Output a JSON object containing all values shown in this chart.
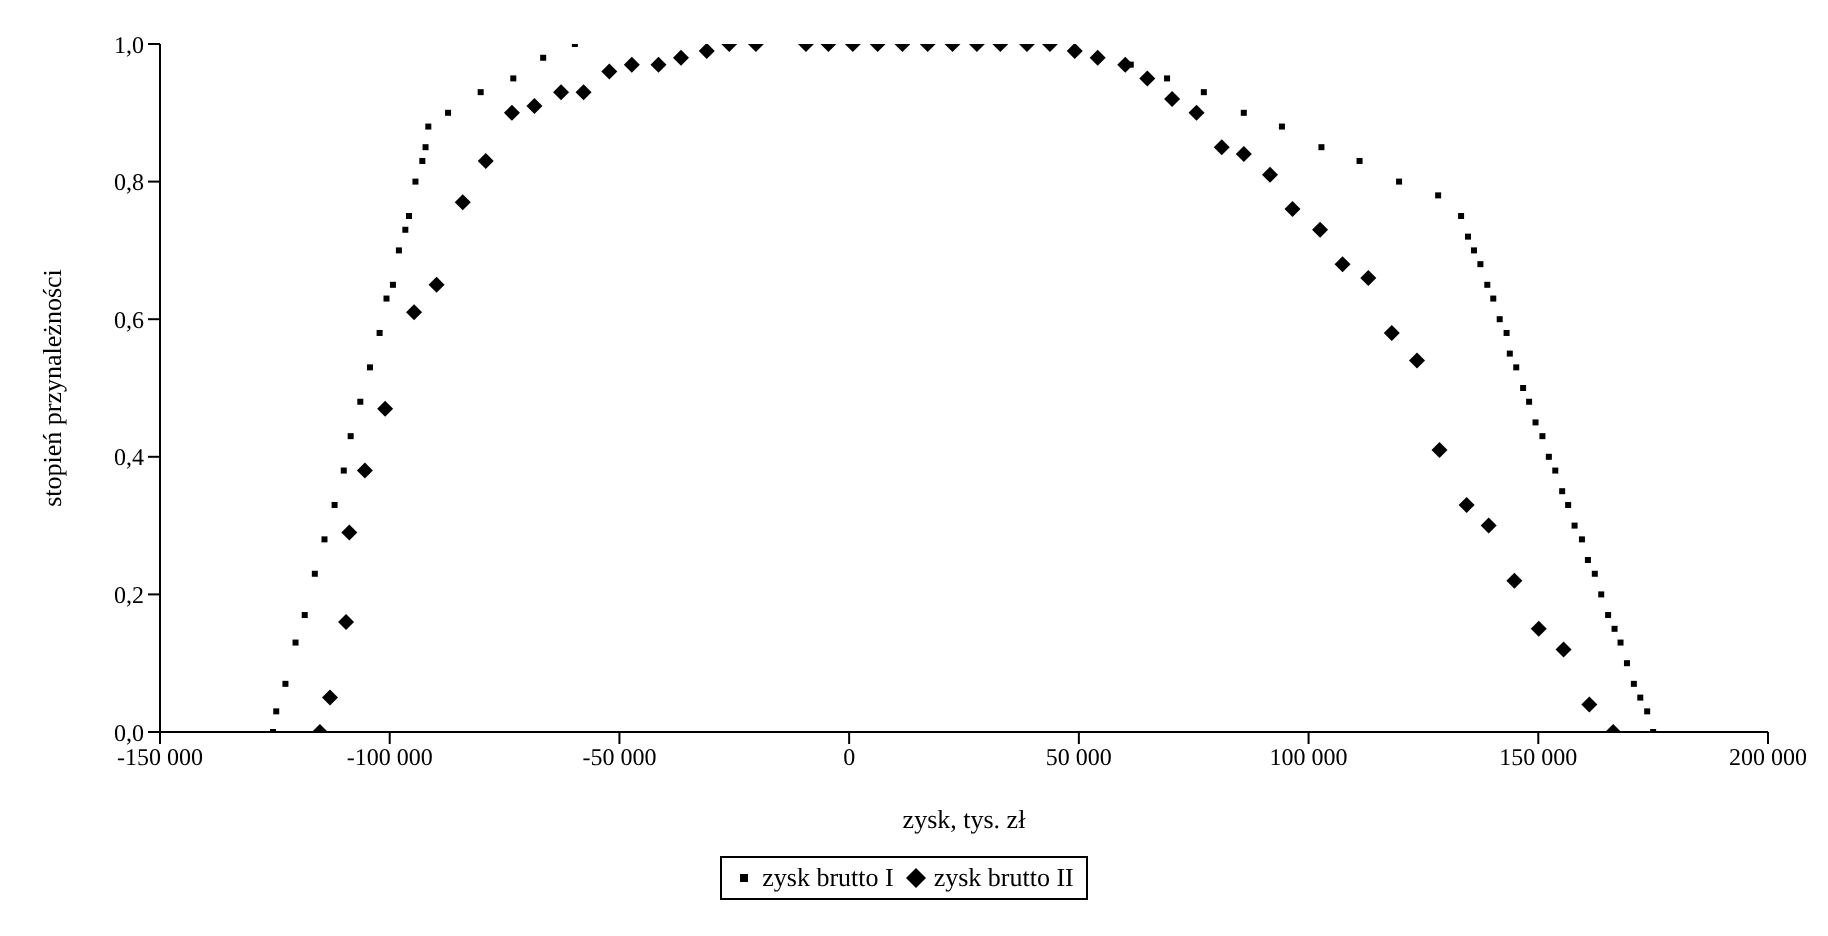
{
  "chart_data": {
    "type": "scatter",
    "xlabel": "zysk, tys. zł",
    "ylabel": "stopień przynależności",
    "xlim": [
      -150000,
      200000
    ],
    "ylim": [
      0,
      1
    ],
    "xticks": [
      {
        "value": -150000,
        "label": "-150 000"
      },
      {
        "value": -100000,
        "label": "-100 000"
      },
      {
        "value": -50000,
        "label": "-50 000"
      },
      0,
      {
        "value": 50000,
        "label": "50 000"
      },
      {
        "value": 100000,
        "label": "100 000"
      },
      {
        "value": 150000,
        "label": "150 000"
      },
      {
        "value": 200000,
        "label": "200 000"
      }
    ],
    "yticks": [
      {
        "value": 0,
        "label": "0,0"
      },
      {
        "value": 0.2,
        "label": "0,2"
      },
      {
        "value": 0.4,
        "label": "0,4"
      },
      {
        "value": 0.6,
        "label": "0,6"
      },
      {
        "value": 0.8,
        "label": "0,8"
      },
      {
        "value": 1,
        "label": "1,0"
      }
    ],
    "grid": false,
    "legend": "bottom",
    "series": [
      {
        "name": "zysk brutto I",
        "color": "#000000",
        "marker": "square",
        "x": [
          -125400,
          -124700,
          -122700,
          -120500,
          -118500,
          -116300,
          -114200,
          -112000,
          -110000,
          -108500,
          -106400,
          -104300,
          -102200,
          -100700,
          -99300,
          -98000,
          -96600,
          -95800,
          -94400,
          -92900,
          -92200,
          -91600,
          -87300,
          -80200,
          -73100,
          -66600,
          -59700,
          61300,
          69200,
          77200,
          85900,
          94200,
          102800,
          111100,
          119700,
          128200,
          133200,
          134700,
          136000,
          137400,
          138900,
          140200,
          141600,
          143100,
          143800,
          145200,
          146700,
          148000,
          149400,
          150900,
          152300,
          153700,
          155200,
          156500,
          157900,
          159500,
          160800,
          162300,
          163700,
          165200,
          166600,
          167900,
          169300,
          170800,
          172200,
          173700,
          175000
        ],
        "values": [
          0,
          0.03,
          0.07,
          0.13,
          0.17,
          0.23,
          0.28,
          0.33,
          0.38,
          0.43,
          0.48,
          0.53,
          0.58,
          0.63,
          0.65,
          0.7,
          0.73,
          0.75,
          0.8,
          0.83,
          0.85,
          0.88,
          0.9,
          0.93,
          0.95,
          0.98,
          1,
          0.97,
          0.95,
          0.93,
          0.9,
          0.88,
          0.85,
          0.83,
          0.8,
          0.78,
          0.75,
          0.72,
          0.7,
          0.68,
          0.65,
          0.63,
          0.6,
          0.58,
          0.55,
          0.53,
          0.5,
          0.48,
          0.45,
          0.43,
          0.4,
          0.38,
          0.35,
          0.33,
          0.3,
          0.28,
          0.25,
          0.23,
          0.2,
          0.17,
          0.15,
          0.13,
          0.1,
          0.07,
          0.05,
          0.03,
          0
        ]
      },
      {
        "name": "zysk brutto II",
        "color": "#000000",
        "marker": "diamond",
        "x": [
          -115200,
          -113000,
          -109500,
          -108800,
          -105400,
          -101000,
          -94700,
          -89800,
          -84100,
          -79100,
          -73400,
          -68500,
          -62700,
          -57800,
          -52200,
          -47300,
          -41500,
          -36600,
          -31000,
          -26100,
          -20300,
          -9400,
          -4500,
          800,
          6200,
          11600,
          17100,
          22500,
          27800,
          32900,
          38700,
          43700,
          49100,
          54100,
          60100,
          64900,
          70300,
          75600,
          81100,
          85900,
          91600,
          96500,
          102500,
          107400,
          113000,
          118100,
          123600,
          128500,
          134400,
          139200,
          144800,
          150100,
          155500,
          161100,
          166300
        ],
        "values": [
          0,
          0.05,
          0.16,
          0.29,
          0.38,
          0.47,
          0.61,
          0.65,
          0.77,
          0.83,
          0.9,
          0.91,
          0.93,
          0.93,
          0.96,
          0.97,
          0.97,
          0.98,
          0.99,
          1,
          1,
          1,
          1,
          1,
          1,
          1,
          1,
          1,
          1,
          1,
          1,
          1,
          0.99,
          0.98,
          0.97,
          0.95,
          0.92,
          0.9,
          0.85,
          0.84,
          0.81,
          0.76,
          0.73,
          0.68,
          0.66,
          0.58,
          0.54,
          0.41,
          0.33,
          0.3,
          0.22,
          0.15,
          0.12,
          0.04,
          0
        ]
      }
    ]
  }
}
